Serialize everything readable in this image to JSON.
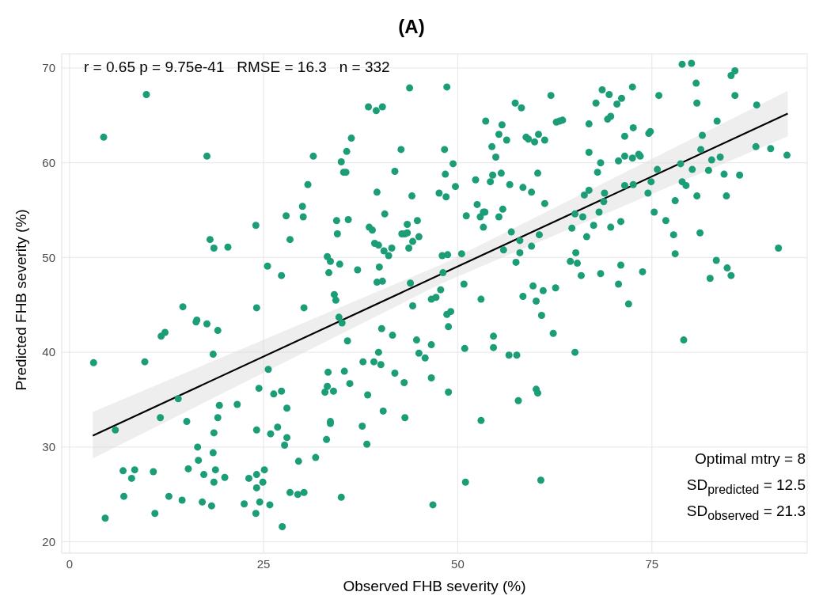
{
  "chart_data": {
    "type": "scatter",
    "title": "(A)",
    "xlabel": "Observed FHB severity (%)",
    "ylabel": "Predicted FHB severity (%)",
    "annotations": [
      "r = 0.65 p = 9.75e-41   RMSE = 16.3   n = 332",
      "Optimal mtry = 8",
      "SD$_{predicted}$ = 12.5",
      "SD$_{observed}$ = 21.3"
    ],
    "xlim": [
      -1,
      95
    ],
    "ylim": [
      18.8,
      71.5
    ],
    "xticks": [
      0,
      25,
      50,
      75
    ],
    "yticks": [
      20,
      30,
      40,
      50,
      60,
      70
    ],
    "grid": true,
    "series": [
      {
        "color": "#1b9e77",
        "marker": "circle",
        "x": [
          9.9,
          4.4,
          17.7,
          3.1,
          9.7,
          5.9,
          4.6,
          6.9,
          8.4,
          8.0,
          7.0,
          10.8,
          11.0,
          11.8,
          12.3,
          11.7,
          12.8,
          14.5,
          14.6,
          14.0,
          15.1,
          15.3,
          16.5,
          16.6,
          16.3,
          16.4,
          17.7,
          17.1,
          17.3,
          18.1,
          18.6,
          18.5,
          18.6,
          18.5,
          18.6,
          18.8,
          18.3,
          19.1,
          19.1,
          19.3,
          20.0,
          20.4,
          21.6,
          22.5,
          23.1,
          24.0,
          24.1,
          24.1,
          24.1,
          24.1,
          24.4,
          24.0,
          24.5,
          24.9,
          25.1,
          25.6,
          25.5,
          25.9,
          25.8,
          26.3,
          26.8,
          27.3,
          27.3,
          27.4,
          27.7,
          27.9,
          28.0,
          28.0,
          28.4,
          28.4,
          29.4,
          29.5,
          30.0,
          30.1,
          30.2,
          30.2,
          30.7,
          31.4,
          31.7,
          33.1,
          32.9,
          33.2,
          33.3,
          33.6,
          33.6,
          33.2,
          33.6,
          33.4,
          34.1,
          34.3,
          34.0,
          34.4,
          34.5,
          34.7,
          34.8,
          35.0,
          35.0,
          35.3,
          35.6,
          35.1,
          35.4,
          35.7,
          35.8,
          35.9,
          36.1,
          36.3,
          37.1,
          37.7,
          37.8,
          38.3,
          38.4,
          38.5,
          38.6,
          39.0,
          39.2,
          39.3,
          39.5,
          39.6,
          39.6,
          39.8,
          39.8,
          39.9,
          40.1,
          40.2,
          40.3,
          40.3,
          40.4,
          40.5,
          40.6,
          41.1,
          41.5,
          41.6,
          41.9,
          41.9,
          42.7,
          42.8,
          43.2,
          43.5,
          43.1,
          43.2,
          43.5,
          43.7,
          43.8,
          43.9,
          44.1,
          44.2,
          44.2,
          44.7,
          44.8,
          45.0,
          45.0,
          45.8,
          46.6,
          47.2,
          46.6,
          46.6,
          46.8,
          47.6,
          47.8,
          48.0,
          48.1,
          48.3,
          48.4,
          48.5,
          48.6,
          48.6,
          48.7,
          48.8,
          48.8,
          49.1,
          49.4,
          49.7,
          50.5,
          50.8,
          50.9,
          51.0,
          51.1,
          52.3,
          52.5,
          52.9,
          53.3,
          53.5,
          53.3,
          53.0,
          53.0,
          53.6,
          54.2,
          54.4,
          54.5,
          54.6,
          54.6,
          54.9,
          55.3,
          55.3,
          55.6,
          55.7,
          55.8,
          55.9,
          56.3,
          56.6,
          56.7,
          56.9,
          57.4,
          57.5,
          57.6,
          57.8,
          58.0,
          58.0,
          58.2,
          58.4,
          58.4,
          58.8,
          59.1,
          59.5,
          59.5,
          59.7,
          59.9,
          60.1,
          60.1,
          60.3,
          60.3,
          60.4,
          60.5,
          60.7,
          60.8,
          61.0,
          61.2,
          61.2,
          62.0,
          62.3,
          62.6,
          62.7,
          63.1,
          63.5,
          64.5,
          64.7,
          65.1,
          65.1,
          65.2,
          65.4,
          65.9,
          66.1,
          66.3,
          66.6,
          66.9,
          66.9,
          66.9,
          67.5,
          67.8,
          68.0,
          68.2,
          68.4,
          68.4,
          68.6,
          68.8,
          68.9,
          69.3,
          69.7,
          69.5,
          69.7,
          70.5,
          70.7,
          70.7,
          71.0,
          71.0,
          71.1,
          71.5,
          71.5,
          71.5,
          72.0,
          72.5,
          72.5,
          72.6,
          72.6,
          73.3,
          73.5,
          73.8,
          74.5,
          74.6,
          74.8,
          74.9,
          75.3,
          75.7,
          75.9,
          76.8,
          77.8,
          78.0,
          78.0,
          78.7,
          78.9,
          78.9,
          79.1,
          79.4,
          80.1,
          80.2,
          80.7,
          80.8,
          80.8,
          81.2,
          81.3,
          81.5,
          82.3,
          82.5,
          82.7,
          83.3,
          83.4,
          83.8,
          84.3,
          84.6,
          84.7,
          85.2,
          85.2,
          85.7,
          85.7,
          86.3,
          88.4,
          88.5,
          90.3,
          91.3,
          92.4
        ],
        "values": [
          67.2,
          62.7,
          60.7,
          38.9,
          39.0,
          31.8,
          22.5,
          27.5,
          27.6,
          26.7,
          24.8,
          27.4,
          23.0,
          41.7,
          42.1,
          33.1,
          24.8,
          24.4,
          44.8,
          35.1,
          32.7,
          27.7,
          30.0,
          28.6,
          43.2,
          43.4,
          43.0,
          24.2,
          27.1,
          51.9,
          51.0,
          39.8,
          31.5,
          29.4,
          26.3,
          27.6,
          23.8,
          42.3,
          33.1,
          34.4,
          26.8,
          51.1,
          34.5,
          24.0,
          26.7,
          53.4,
          44.7,
          31.8,
          27.1,
          25.7,
          36.2,
          23.0,
          24.2,
          26.3,
          27.6,
          38.2,
          49.1,
          31.4,
          23.9,
          35.6,
          32.1,
          35.9,
          48.1,
          21.6,
          30.2,
          54.4,
          31.0,
          34.1,
          25.2,
          51.9,
          25.0,
          28.5,
          55.4,
          54.3,
          25.2,
          44.7,
          57.7,
          60.7,
          28.9,
          30.8,
          35.8,
          36.4,
          37.9,
          32.7,
          32.5,
          50.1,
          49.6,
          48.4,
          46.1,
          45.5,
          35.9,
          53.9,
          52.5,
          43.7,
          49.3,
          24.7,
          60.1,
          59.0,
          59.0,
          43.1,
          38.0,
          61.2,
          41.2,
          54.0,
          36.7,
          62.6,
          48.7,
          32.2,
          39.0,
          30.3,
          35.5,
          65.9,
          53.2,
          52.9,
          39.0,
          51.5,
          65.5,
          56.9,
          47.4,
          51.3,
          40.0,
          49.0,
          38.7,
          42.5,
          65.9,
          47.5,
          33.8,
          50.7,
          54.6,
          50.2,
          51.0,
          41.8,
          37.8,
          59.1,
          61.4,
          52.5,
          52.5,
          52.6,
          36.8,
          33.1,
          53.5,
          51.0,
          67.9,
          47.3,
          56.5,
          51.7,
          44.9,
          41.3,
          53.9,
          52.2,
          39.9,
          39.4,
          45.6,
          45.8,
          40.8,
          37.3,
          23.9,
          56.8,
          46.6,
          50.2,
          48.4,
          61.4,
          58.8,
          56.4,
          68.0,
          44.0,
          50.3,
          42.7,
          35.8,
          44.3,
          59.9,
          57.5,
          50.4,
          47.2,
          40.4,
          26.3,
          54.4,
          58.2,
          55.6,
          54.3,
          54.8,
          54.8,
          53.2,
          45.6,
          32.8,
          64.4,
          58.0,
          61.7,
          58.7,
          41.7,
          40.5,
          60.6,
          63.0,
          54.3,
          58.9,
          64.0,
          55.1,
          50.8,
          62.4,
          39.7,
          57.7,
          52.7,
          66.3,
          49.5,
          39.7,
          34.9,
          50.5,
          51.8,
          65.8,
          57.4,
          45.9,
          62.7,
          62.5,
          56.9,
          51.2,
          47.0,
          62.2,
          45.4,
          36.1,
          35.7,
          58.9,
          63.0,
          52.4,
          26.5,
          43.9,
          46.5,
          62.4,
          55.7,
          67.1,
          42.0,
          46.8,
          64.3,
          64.4,
          64.5,
          49.6,
          53.1,
          54.6,
          40.0,
          50.5,
          49.4,
          48.1,
          54.3,
          56.6,
          52.2,
          57.1,
          61.1,
          64.1,
          53.4,
          66.3,
          59.0,
          54.8,
          60.0,
          48.3,
          67.7,
          55.9,
          56.8,
          64.6,
          64.9,
          67.2,
          53.2,
          66.2,
          60.2,
          47.2,
          53.8,
          49.2,
          66.8,
          57.6,
          60.7,
          62.8,
          45.1,
          68.0,
          60.5,
          57.7,
          63.7,
          60.9,
          60.7,
          48.5,
          56.8,
          63.1,
          63.3,
          58.0,
          54.8,
          59.3,
          67.1,
          53.9,
          52.4,
          56.0,
          50.4,
          59.9,
          58.0,
          70.4,
          41.3,
          57.6,
          70.5,
          59.3,
          68.4,
          66.3,
          56.5,
          52.6,
          61.4,
          62.9,
          59.2,
          47.8,
          60.3,
          49.7,
          64.4,
          60.6,
          58.8,
          56.5,
          48.9,
          48.1,
          69.2,
          69.7,
          67.1,
          58.7,
          61.7,
          66.1,
          61.5,
          51.0,
          60.8
        ]
      },
      {
        "type": "line",
        "color": "#000000",
        "marker": "none",
        "x": [
          3,
          48,
          92.5
        ],
        "values": [
          31.2,
          48.3,
          65.2
        ],
        "lower": [
          28.8,
          47.3,
          62.8
        ],
        "upper": [
          33.7,
          49.3,
          67.6
        ]
      }
    ]
  }
}
